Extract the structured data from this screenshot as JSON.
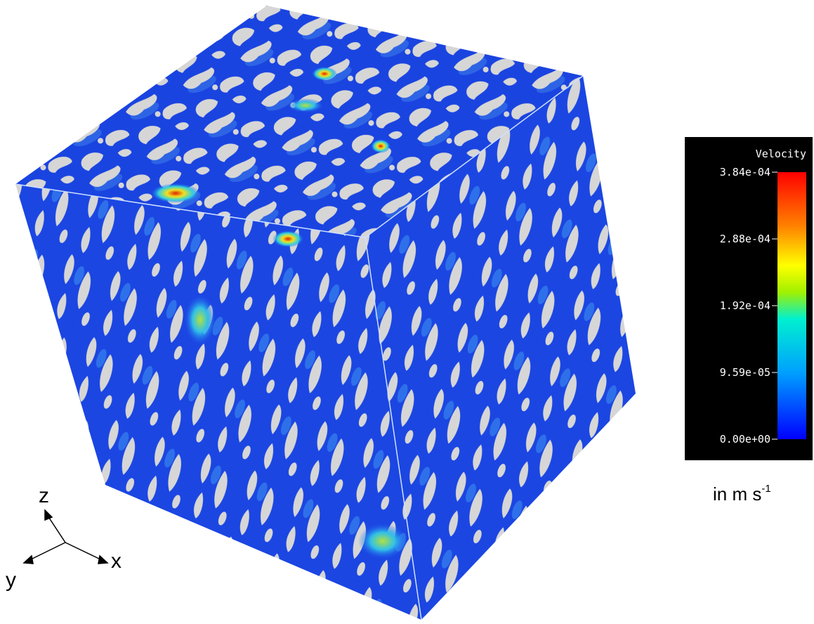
{
  "colorbar": {
    "title": "Velocity",
    "range": [
      0,
      0.000384
    ],
    "ticks": [
      {
        "value": 0.000384,
        "label": "3.84e-04"
      },
      {
        "value": 0.000288,
        "label": "2.88e-04"
      },
      {
        "value": 0.000192,
        "label": "1.92e-04"
      },
      {
        "value": 9.59e-05,
        "label": "9.59e-05"
      },
      {
        "value": 0,
        "label": "0.00e+00"
      }
    ]
  },
  "unit": {
    "text": "in m s",
    "superscript": "-1"
  },
  "axes": {
    "z": "z",
    "y": "y",
    "x": "x"
  }
}
